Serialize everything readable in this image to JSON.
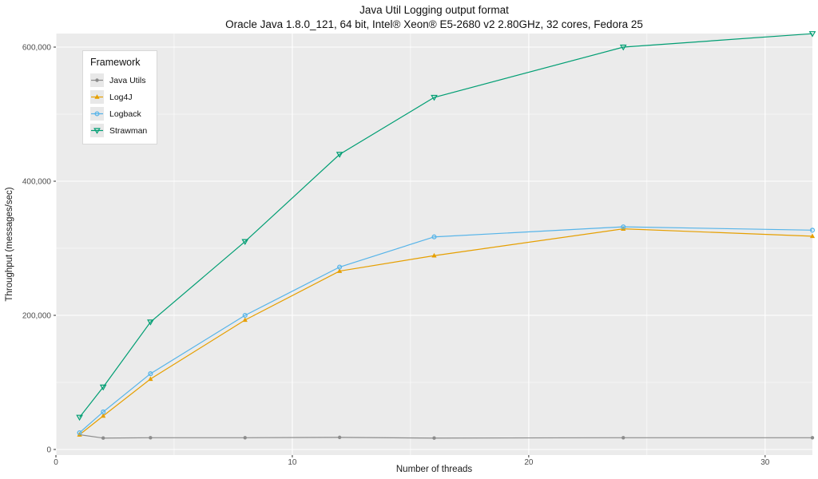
{
  "chart_data": {
    "type": "line",
    "title": "Java Util Logging output format",
    "subtitle": "Oracle Java 1.8.0_121, 64 bit, Intel® Xeon® E5-2680 v2 2.80GHz, 32 cores, Fedora 25",
    "xlabel": "Number of threads",
    "ylabel": "Throughput (messages/sec)",
    "legend_title": "Framework",
    "legend_position": "top-left inside plot",
    "x": [
      1,
      2,
      4,
      8,
      12,
      16,
      24,
      32
    ],
    "series": [
      {
        "name": "Java Utils",
        "color": "#8c8c8c",
        "marker": "circle",
        "values": [
          22000,
          17000,
          17500,
          17500,
          18000,
          17000,
          17500,
          17500
        ]
      },
      {
        "name": "Log4J",
        "color": "#e69f00",
        "marker": "triangle",
        "values": [
          22000,
          50000,
          105000,
          193000,
          266000,
          289000,
          329000,
          318000
        ]
      },
      {
        "name": "Logback",
        "color": "#56b4e9",
        "marker": "circle-open",
        "values": [
          25000,
          56000,
          113000,
          200000,
          272000,
          317000,
          332000,
          327000
        ]
      },
      {
        "name": "Strawman",
        "color": "#009e73",
        "marker": "triangle-down-open",
        "values": [
          48000,
          93000,
          190000,
          310000,
          440000,
          525000,
          600000,
          620000
        ]
      }
    ],
    "xlim": [
      0,
      32
    ],
    "ylim": [
      0,
      620000
    ],
    "x_ticks": [
      0,
      10,
      20,
      30
    ],
    "x_tick_labels": [
      "0",
      "10",
      "20",
      "30"
    ],
    "x_minor_ticks": [
      5,
      15,
      25
    ],
    "y_ticks": [
      0,
      200000,
      400000,
      600000
    ],
    "y_tick_labels": [
      "0",
      "200,000",
      "400,000",
      "600,000"
    ],
    "y_minor_ticks": [
      100000,
      300000,
      500000
    ],
    "grid": true,
    "panel_background": "#ebebeb",
    "gridline_color": "#ffffff",
    "tick_color": "#333333",
    "tick_label_color": "#4d4d4d"
  }
}
